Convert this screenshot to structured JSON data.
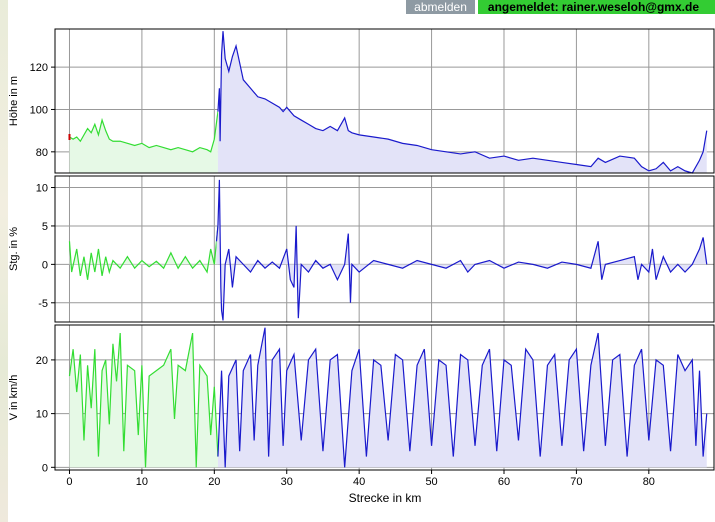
{
  "header": {
    "logout_label": "abmelden",
    "user_label": "angemeldet: rainer.weseloh@gmx.de"
  },
  "chart_data": {
    "type": "area",
    "xlabel": "Strecke in km",
    "xlim": [
      -2,
      89
    ],
    "xticks": [
      0,
      10,
      20,
      30,
      40,
      50,
      60,
      70,
      80
    ],
    "split_km": 20.5,
    "colors": {
      "first": "#33dd33",
      "second": "#1a1acc",
      "fill_first": "#e6f9e6",
      "fill_second": "#e3e3f8",
      "marker": "#cc0000"
    },
    "panels": [
      {
        "key": "hoehe",
        "ylabel": "Höhe in m",
        "ylim": [
          70,
          138
        ],
        "yticks": [
          80,
          100,
          120
        ],
        "baseline": 70,
        "points": [
          [
            0,
            87
          ],
          [
            0.5,
            86
          ],
          [
            1,
            87
          ],
          [
            1.5,
            85
          ],
          [
            2,
            88
          ],
          [
            2.5,
            91
          ],
          [
            3,
            89
          ],
          [
            3.5,
            93
          ],
          [
            4,
            88
          ],
          [
            4.5,
            95
          ],
          [
            5,
            90
          ],
          [
            5.5,
            86
          ],
          [
            6,
            85
          ],
          [
            7,
            85
          ],
          [
            8,
            84
          ],
          [
            9,
            83
          ],
          [
            10,
            84
          ],
          [
            11,
            82
          ],
          [
            12,
            83
          ],
          [
            13,
            82
          ],
          [
            14,
            81
          ],
          [
            15,
            82
          ],
          [
            16,
            81
          ],
          [
            17,
            80
          ],
          [
            18,
            82
          ],
          [
            19,
            81
          ],
          [
            19.5,
            80
          ],
          [
            20,
            86
          ],
          [
            20.5,
            99
          ],
          [
            20.7,
            110
          ],
          [
            20.8,
            85
          ],
          [
            21,
            126
          ],
          [
            21.2,
            137
          ],
          [
            21.5,
            124
          ],
          [
            22,
            118
          ],
          [
            22.5,
            125
          ],
          [
            23,
            130
          ],
          [
            23.5,
            122
          ],
          [
            24,
            114
          ],
          [
            25,
            110
          ],
          [
            26,
            106
          ],
          [
            27,
            105
          ],
          [
            28,
            103
          ],
          [
            29,
            101
          ],
          [
            29.5,
            99
          ],
          [
            30,
            101
          ],
          [
            31,
            97
          ],
          [
            32,
            95
          ],
          [
            33,
            93
          ],
          [
            34,
            91
          ],
          [
            35,
            90
          ],
          [
            36,
            92
          ],
          [
            37,
            90
          ],
          [
            38,
            96
          ],
          [
            38.5,
            90
          ],
          [
            39,
            89
          ],
          [
            40,
            88
          ],
          [
            42,
            87
          ],
          [
            44,
            86
          ],
          [
            46,
            84
          ],
          [
            48,
            83
          ],
          [
            50,
            81
          ],
          [
            52,
            80
          ],
          [
            54,
            79
          ],
          [
            56,
            80
          ],
          [
            58,
            77
          ],
          [
            60,
            78
          ],
          [
            62,
            76
          ],
          [
            64,
            77
          ],
          [
            66,
            76
          ],
          [
            68,
            75
          ],
          [
            70,
            74
          ],
          [
            72,
            73
          ],
          [
            73,
            77
          ],
          [
            74,
            75
          ],
          [
            76,
            78
          ],
          [
            78,
            77
          ],
          [
            79,
            73
          ],
          [
            80,
            71
          ],
          [
            81,
            72
          ],
          [
            82,
            75
          ],
          [
            83,
            71
          ],
          [
            84,
            73
          ],
          [
            85,
            71
          ],
          [
            86,
            70
          ],
          [
            87,
            76
          ],
          [
            87.5,
            80
          ],
          [
            88,
            90
          ]
        ]
      },
      {
        "key": "steigung",
        "ylabel": "Stg. in %",
        "ylim": [
          -7.5,
          11.5
        ],
        "yticks": [
          -5,
          0,
          5,
          10
        ],
        "baseline": 0,
        "points": [
          [
            0,
            3
          ],
          [
            0.3,
            -1
          ],
          [
            1,
            2
          ],
          [
            1.5,
            -1.5
          ],
          [
            2,
            1
          ],
          [
            2.5,
            -2
          ],
          [
            3,
            1.5
          ],
          [
            3.5,
            -1
          ],
          [
            4,
            2
          ],
          [
            4.5,
            -1.5
          ],
          [
            5,
            1
          ],
          [
            5.5,
            -1
          ],
          [
            6,
            0.5
          ],
          [
            7,
            -0.5
          ],
          [
            8,
            1
          ],
          [
            9,
            -0.5
          ],
          [
            10,
            0.5
          ],
          [
            11,
            -0.3
          ],
          [
            12,
            0.4
          ],
          [
            13,
            -0.5
          ],
          [
            14,
            1.5
          ],
          [
            15,
            -0.5
          ],
          [
            16,
            1
          ],
          [
            17,
            -0.5
          ],
          [
            18,
            0.5
          ],
          [
            19,
            -1
          ],
          [
            19.5,
            2
          ],
          [
            20,
            0
          ],
          [
            20.3,
            3
          ],
          [
            20.5,
            5
          ],
          [
            20.7,
            11
          ],
          [
            20.9,
            -3
          ],
          [
            21,
            -6
          ],
          [
            21.2,
            -7.3
          ],
          [
            21.5,
            0
          ],
          [
            22,
            2
          ],
          [
            22.5,
            -3
          ],
          [
            23,
            1
          ],
          [
            24,
            0
          ],
          [
            25,
            -1
          ],
          [
            26,
            0.5
          ],
          [
            27,
            -0.5
          ],
          [
            28,
            0.3
          ],
          [
            29,
            -0.5
          ],
          [
            30,
            2
          ],
          [
            30.5,
            -2
          ],
          [
            31,
            -3
          ],
          [
            31.3,
            5
          ],
          [
            31.6,
            -7
          ],
          [
            32,
            0
          ],
          [
            33,
            -1
          ],
          [
            34,
            0.5
          ],
          [
            35,
            -0.5
          ],
          [
            36,
            0
          ],
          [
            37,
            -2
          ],
          [
            38,
            0
          ],
          [
            38.5,
            4
          ],
          [
            38.8,
            -5
          ],
          [
            39,
            0
          ],
          [
            40,
            -1
          ],
          [
            42,
            0.5
          ],
          [
            44,
            0
          ],
          [
            46,
            -0.5
          ],
          [
            48,
            0.5
          ],
          [
            50,
            0
          ],
          [
            52,
            -0.5
          ],
          [
            54,
            0.5
          ],
          [
            55,
            -1
          ],
          [
            56,
            0
          ],
          [
            58,
            0.5
          ],
          [
            60,
            -0.5
          ],
          [
            62,
            0.3
          ],
          [
            64,
            0
          ],
          [
            66,
            -0.5
          ],
          [
            68,
            0.3
          ],
          [
            70,
            0
          ],
          [
            72,
            -0.5
          ],
          [
            73,
            3
          ],
          [
            73.5,
            -2
          ],
          [
            74,
            0
          ],
          [
            76,
            0.5
          ],
          [
            78,
            1
          ],
          [
            78.5,
            -2
          ],
          [
            79,
            0
          ],
          [
            80,
            -1
          ],
          [
            80.5,
            2
          ],
          [
            81,
            -2
          ],
          [
            82,
            1
          ],
          [
            83,
            -1
          ],
          [
            84,
            0
          ],
          [
            85,
            -1
          ],
          [
            86,
            0
          ],
          [
            87,
            2
          ],
          [
            87.5,
            3.5
          ],
          [
            88,
            0
          ]
        ]
      },
      {
        "key": "geschwindigkeit",
        "ylabel": "V in km/h",
        "ylim": [
          -0.5,
          26.5
        ],
        "yticks": [
          0,
          10,
          20
        ],
        "baseline": 0,
        "points": [
          [
            0,
            17
          ],
          [
            0.5,
            22
          ],
          [
            1,
            14
          ],
          [
            1.5,
            21
          ],
          [
            2,
            5
          ],
          [
            2.5,
            19
          ],
          [
            3,
            11
          ],
          [
            3.5,
            22
          ],
          [
            4,
            2
          ],
          [
            4.5,
            18
          ],
          [
            5,
            20
          ],
          [
            5.5,
            8
          ],
          [
            6,
            23
          ],
          [
            6.5,
            16
          ],
          [
            7,
            25
          ],
          [
            7.5,
            3
          ],
          [
            8,
            19
          ],
          [
            9,
            18
          ],
          [
            9.5,
            6
          ],
          [
            10,
            19
          ],
          [
            10.5,
            0
          ],
          [
            11,
            17
          ],
          [
            12,
            18
          ],
          [
            13,
            19
          ],
          [
            14,
            22
          ],
          [
            14.5,
            9
          ],
          [
            15,
            19
          ],
          [
            16,
            18
          ],
          [
            17,
            25
          ],
          [
            17.5,
            0
          ],
          [
            18,
            19
          ],
          [
            19,
            17
          ],
          [
            19.5,
            6
          ],
          [
            20,
            15
          ],
          [
            20.5,
            2
          ],
          [
            21,
            18
          ],
          [
            21.5,
            0
          ],
          [
            22,
            17
          ],
          [
            23,
            20
          ],
          [
            23.5,
            3
          ],
          [
            24,
            18
          ],
          [
            25,
            21
          ],
          [
            25.5,
            5
          ],
          [
            26,
            19
          ],
          [
            27,
            26
          ],
          [
            27.5,
            2
          ],
          [
            28,
            20
          ],
          [
            29,
            22
          ],
          [
            29.5,
            4
          ],
          [
            30,
            18
          ],
          [
            31,
            21
          ],
          [
            32,
            5
          ],
          [
            33,
            20
          ],
          [
            34,
            22
          ],
          [
            35,
            3
          ],
          [
            36,
            20
          ],
          [
            37,
            21
          ],
          [
            38,
            0
          ],
          [
            39,
            18
          ],
          [
            40,
            22
          ],
          [
            41,
            2
          ],
          [
            42,
            20
          ],
          [
            43,
            19
          ],
          [
            44,
            5
          ],
          [
            45,
            21
          ],
          [
            46,
            20
          ],
          [
            47,
            3
          ],
          [
            48,
            19
          ],
          [
            49,
            22
          ],
          [
            50,
            4
          ],
          [
            51,
            20
          ],
          [
            52,
            19
          ],
          [
            53,
            2
          ],
          [
            54,
            21
          ],
          [
            55,
            20
          ],
          [
            56,
            4
          ],
          [
            57,
            19
          ],
          [
            58,
            22
          ],
          [
            59,
            3
          ],
          [
            60,
            20
          ],
          [
            61,
            19
          ],
          [
            62,
            5
          ],
          [
            63,
            22
          ],
          [
            64,
            20
          ],
          [
            65,
            2
          ],
          [
            66,
            19
          ],
          [
            67,
            21
          ],
          [
            68,
            4
          ],
          [
            69,
            20
          ],
          [
            70,
            22
          ],
          [
            71,
            3
          ],
          [
            72,
            19
          ],
          [
            73,
            25
          ],
          [
            74,
            4
          ],
          [
            75,
            20
          ],
          [
            76,
            21
          ],
          [
            77,
            2
          ],
          [
            78,
            19
          ],
          [
            79,
            22
          ],
          [
            80,
            5
          ],
          [
            81,
            20
          ],
          [
            82,
            19
          ],
          [
            83,
            3
          ],
          [
            84,
            21
          ],
          [
            85,
            18
          ],
          [
            86,
            20
          ],
          [
            86.5,
            4
          ],
          [
            87,
            18
          ],
          [
            87.5,
            2
          ],
          [
            88,
            10
          ]
        ]
      }
    ]
  }
}
